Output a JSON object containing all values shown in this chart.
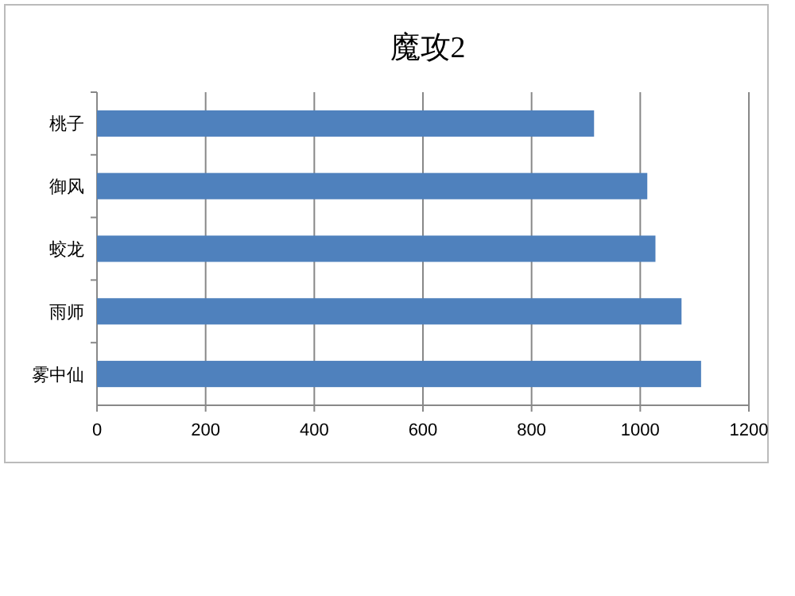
{
  "chart_data": {
    "type": "bar",
    "orientation": "horizontal",
    "title": "魔攻2",
    "categories": [
      "桃子",
      "御风",
      "蛟龙",
      "雨师",
      "雾中仙"
    ],
    "values": [
      915,
      1013,
      1028,
      1076,
      1112
    ],
    "color": "#4f81bd",
    "xlim": [
      0,
      1200
    ],
    "xticks": [
      0,
      200,
      400,
      600,
      800,
      1000,
      1200
    ],
    "grid": "x"
  }
}
